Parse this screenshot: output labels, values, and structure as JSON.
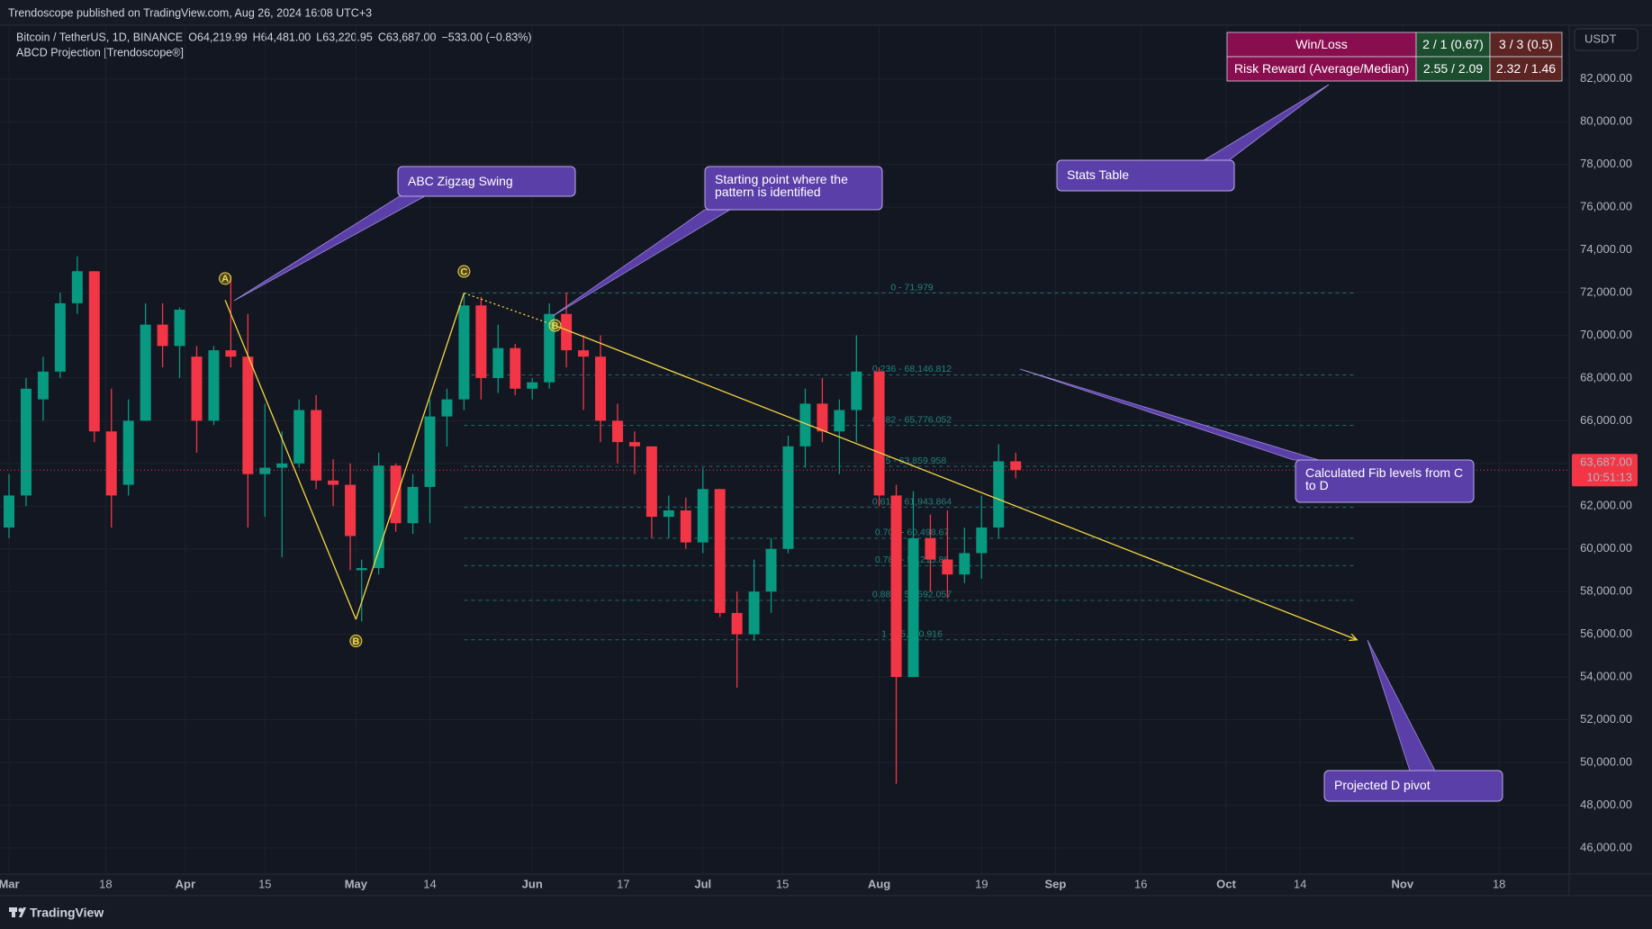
{
  "chart_data": {
    "type": "candlestick",
    "header": "Trendoscope published on TradingView.com, Aug 26, 2024 16:08 UTC+3",
    "symbol": "Bitcoin / TetherUS, 1D, BINANCE",
    "ohlc": [
      {
        "key": "O",
        "value": "64,219.99"
      },
      {
        "key": "H",
        "value": "64,481.00"
      },
      {
        "key": "L",
        "value": "63,220.95"
      },
      {
        "key": "C",
        "value": "63,687.00"
      }
    ],
    "change": "−533.00 (−0.83%)",
    "indicator": "ABCD Projection [Trendoscope®]",
    "currency": "USDT",
    "footer": "TradingView",
    "up_color": "#089981",
    "down_color": "#f23645",
    "x": [
      "2024-03-01",
      "2024-03-04",
      "2024-03-07",
      "2024-03-10",
      "2024-03-13",
      "2024-03-16",
      "2024-03-19",
      "2024-03-22",
      "2024-03-25",
      "2024-03-28",
      "2024-03-31",
      "2024-04-03",
      "2024-04-06",
      "2024-04-09",
      "2024-04-12",
      "2024-04-15",
      "2024-04-18",
      "2024-04-21",
      "2024-04-24",
      "2024-04-27",
      "2024-04-30",
      "2024-05-02",
      "2024-05-05",
      "2024-05-08",
      "2024-05-11",
      "2024-05-14",
      "2024-05-17",
      "2024-05-20",
      "2024-05-23",
      "2024-05-26",
      "2024-05-29",
      "2024-06-01",
      "2024-06-04",
      "2024-06-07",
      "2024-06-10",
      "2024-06-13",
      "2024-06-16",
      "2024-06-19",
      "2024-06-22",
      "2024-06-25",
      "2024-06-28",
      "2024-07-01",
      "2024-07-04",
      "2024-07-07",
      "2024-07-10",
      "2024-07-13",
      "2024-07-16",
      "2024-07-19",
      "2024-07-22",
      "2024-07-25",
      "2024-07-28",
      "2024-08-01",
      "2024-08-04",
      "2024-08-07",
      "2024-08-10",
      "2024-08-13",
      "2024-08-16",
      "2024-08-19",
      "2024-08-22",
      "2024-08-25"
    ],
    "open": [
      61000,
      62500,
      67000,
      68300,
      71500,
      73000,
      65500,
      63000,
      66000,
      70500,
      69500,
      69000,
      66000,
      69300,
      69000,
      63500,
      63800,
      64000,
      66500,
      63200,
      63000,
      59000,
      59100,
      63900,
      61200,
      62900,
      66200,
      67000,
      71400,
      68000,
      69400,
      67500,
      67800,
      71000,
      69300,
      69000,
      66000,
      65000,
      64800,
      61500,
      61800,
      60300,
      62800,
      57000,
      56000,
      58000,
      60000,
      64800,
      66800,
      65500,
      66500,
      68300,
      62500,
      54000,
      60500,
      59500,
      58800,
      59800,
      61000,
      64100
    ],
    "high": [
      63500,
      68000,
      69000,
      72000,
      73700,
      73000,
      67500,
      67000,
      71500,
      71500,
      71300,
      69500,
      69500,
      72800,
      71000,
      66800,
      65500,
      67000,
      67200,
      64200,
      64000,
      59500,
      64500,
      64000,
      63500,
      67000,
      67500,
      72000,
      71800,
      70500,
      69600,
      68000,
      71500,
      72000,
      70000,
      70000,
      66800,
      65500,
      64800,
      62500,
      62400,
      63800,
      62800,
      58000,
      59500,
      60500,
      65300,
      67500,
      68000,
      67000,
      70000,
      68500,
      63000,
      62700,
      61600,
      61800,
      61000,
      62500,
      64900,
      64500
    ],
    "low": [
      60500,
      62000,
      66000,
      68000,
      71000,
      65000,
      61000,
      62500,
      66000,
      68500,
      68000,
      64500,
      65800,
      68500,
      61000,
      61500,
      59600,
      63800,
      62800,
      62000,
      59000,
      56600,
      58800,
      60800,
      60700,
      61200,
      64800,
      66500,
      67000,
      67300,
      67200,
      67000,
      67500,
      68500,
      66500,
      65000,
      64000,
      63500,
      60500,
      60500,
      60000,
      59800,
      56800,
      53500,
      55700,
      57000,
      59800,
      63800,
      65000,
      63500,
      65000,
      62000,
      49000,
      54000,
      58000,
      57700,
      58400,
      58600,
      60500,
      63300
    ],
    "close": [
      62500,
      67500,
      68300,
      71500,
      73000,
      65500,
      62500,
      66000,
      70500,
      69500,
      71200,
      66000,
      69300,
      69000,
      63500,
      63800,
      64000,
      66500,
      63200,
      63000,
      60600,
      59100,
      63900,
      61200,
      62900,
      66200,
      67000,
      71400,
      68000,
      69400,
      67500,
      67800,
      71000,
      69300,
      69000,
      66000,
      65000,
      64800,
      61500,
      61800,
      60300,
      62800,
      57000,
      56000,
      58000,
      60000,
      64800,
      66800,
      65500,
      66500,
      68300,
      62500,
      54000,
      60500,
      59500,
      58800,
      59800,
      61000,
      64100,
      63687
    ],
    "xlim": [
      "2024-02-29",
      "2024-11-30"
    ],
    "xticks": [
      {
        "value": "2024-03-01",
        "label": "Mar"
      },
      {
        "value": "2024-03-18",
        "label": "18"
      },
      {
        "value": "2024-04-01",
        "label": "Apr"
      },
      {
        "value": "2024-04-15",
        "label": "15"
      },
      {
        "value": "2024-05-01",
        "label": "May"
      },
      {
        "value": "2024-05-14",
        "label": "14"
      },
      {
        "value": "2024-06-01",
        "label": "Jun"
      },
      {
        "value": "2024-06-17",
        "label": "17"
      },
      {
        "value": "2024-07-01",
        "label": "Jul"
      },
      {
        "value": "2024-07-15",
        "label": "15"
      },
      {
        "value": "2024-08-01",
        "label": "Aug"
      },
      {
        "value": "2024-08-19",
        "label": "19"
      },
      {
        "value": "2024-09-01",
        "label": "Sep"
      },
      {
        "value": "2024-09-16",
        "label": "16"
      },
      {
        "value": "2024-10-01",
        "label": "Oct"
      },
      {
        "value": "2024-10-14",
        "label": "14"
      },
      {
        "value": "2024-11-01",
        "label": "Nov"
      },
      {
        "value": "2024-11-18",
        "label": "18"
      }
    ],
    "ylim": [
      44800,
      84500
    ],
    "yticks": [
      {
        "value": 46000,
        "label": "46,000.00"
      },
      {
        "value": 48000,
        "label": "48,000.00"
      },
      {
        "value": 50000,
        "label": "50,000.00"
      },
      {
        "value": 52000,
        "label": "52,000.00"
      },
      {
        "value": 54000,
        "label": "54,000.00"
      },
      {
        "value": 56000,
        "label": "56,000.00"
      },
      {
        "value": 58000,
        "label": "58,000.00"
      },
      {
        "value": 60000,
        "label": "60,000.00"
      },
      {
        "value": 62000,
        "label": "62,000.00"
      },
      {
        "value": 64000,
        "label": "64,000.00"
      },
      {
        "value": 66000,
        "label": "66,000.00"
      },
      {
        "value": 68000,
        "label": "68,000.00"
      },
      {
        "value": 70000,
        "label": "70,000.00"
      },
      {
        "value": 72000,
        "label": "72,000.00"
      },
      {
        "value": 74000,
        "label": "74,000.00"
      },
      {
        "value": 76000,
        "label": "76,000.00"
      },
      {
        "value": 78000,
        "label": "78,000.00"
      },
      {
        "value": 80000,
        "label": "80,000.00"
      },
      {
        "value": 82000,
        "label": "82,000.00"
      }
    ],
    "grid": true,
    "last_price": {
      "value": 63687,
      "label": "63,687.00",
      "countdown": "10:51:13"
    },
    "pattern": {
      "color": "#f5d742",
      "points": [
        {
          "label": "A",
          "x": "2024-04-08",
          "y": 71650
        },
        {
          "label": "B",
          "x": "2024-05-01",
          "y": 56700
        },
        {
          "label": "C",
          "x": "2024-05-20",
          "y": 71979
        }
      ],
      "start": {
        "label": "B",
        "x": "2024-06-05",
        "y": 70460
      },
      "projected_d": {
        "x": "2024-10-24",
        "y": 55740.916
      }
    },
    "fib_levels": [
      {
        "value": 71979,
        "label": "0 - 71,979"
      },
      {
        "value": 68146.812,
        "label": "0.236 - 68,146.812"
      },
      {
        "value": 65776.052,
        "label": "0.382 - 65,776.052"
      },
      {
        "value": 63859.958,
        "label": "0.5 - 63,859.958"
      },
      {
        "value": 61943.864,
        "label": "0.618 - 61,943.864"
      },
      {
        "value": 60498.67,
        "label": "0.707 - 60,498.67"
      },
      {
        "value": 59215.86,
        "label": "0.786 - 59,215.86"
      },
      {
        "value": 57592.057,
        "label": "0.886 - 57,592.057"
      },
      {
        "value": 55740.916,
        "label": "1 - 55,740.916"
      }
    ],
    "stats_table": {
      "rows": [
        [
          "Win/Loss",
          "2 / 1 (0.67)",
          "3 / 3 (0.5)"
        ],
        [
          "Risk Reward (Average/Median)",
          "2.55 / 2.09",
          "2.32 / 1.46"
        ]
      ]
    },
    "annotations": [
      "ABC Zigzag Swing",
      "Starting point where the pattern is identified",
      "Stats Table",
      "Calculated Fib levels from C to D",
      "Projected D pivot"
    ]
  }
}
